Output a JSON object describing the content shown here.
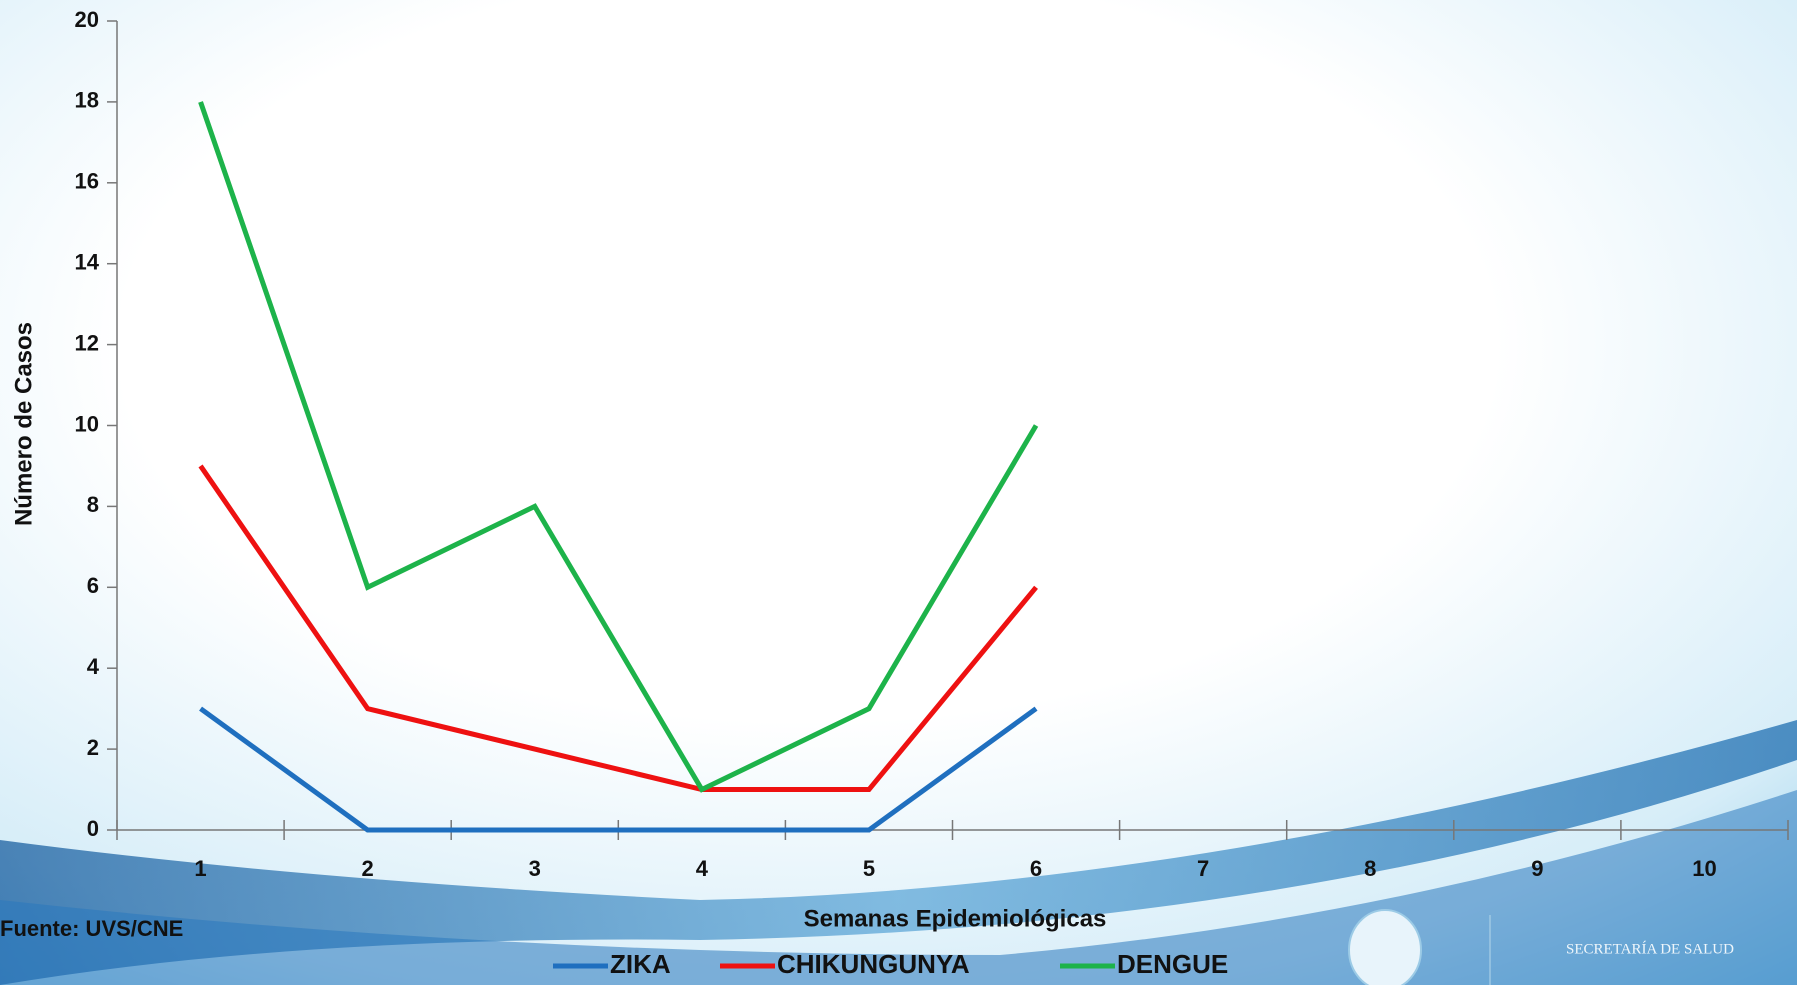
{
  "chart_data": {
    "type": "line",
    "x_label": "Semanas Epidemiológicas",
    "y_label": "Número de Casos",
    "categories": [
      "1",
      "2",
      "3",
      "4",
      "5",
      "6",
      "7",
      "8",
      "9",
      "10"
    ],
    "series": [
      {
        "name": "ZIKA",
        "color": "#1f6fbf",
        "values": [
          3,
          0,
          0,
          0,
          0,
          3,
          null,
          null,
          null,
          null
        ]
      },
      {
        "name": "CHIKUNGUNYA",
        "color": "#ee1111",
        "values": [
          9,
          3,
          2,
          1,
          1,
          6,
          null,
          null,
          null,
          null
        ]
      },
      {
        "name": "DENGUE",
        "color": "#1db34a",
        "values": [
          18,
          6,
          8,
          1,
          3,
          10,
          null,
          null,
          null,
          null
        ]
      }
    ],
    "ylim": [
      0,
      20
    ],
    "yticks": [
      0,
      2,
      4,
      6,
      8,
      10,
      12,
      14,
      16,
      18,
      20
    ],
    "legend": "bottom"
  },
  "source": "Fuente: UVS/CNE",
  "logo_text": "SECRETARÍA DE SALUD"
}
